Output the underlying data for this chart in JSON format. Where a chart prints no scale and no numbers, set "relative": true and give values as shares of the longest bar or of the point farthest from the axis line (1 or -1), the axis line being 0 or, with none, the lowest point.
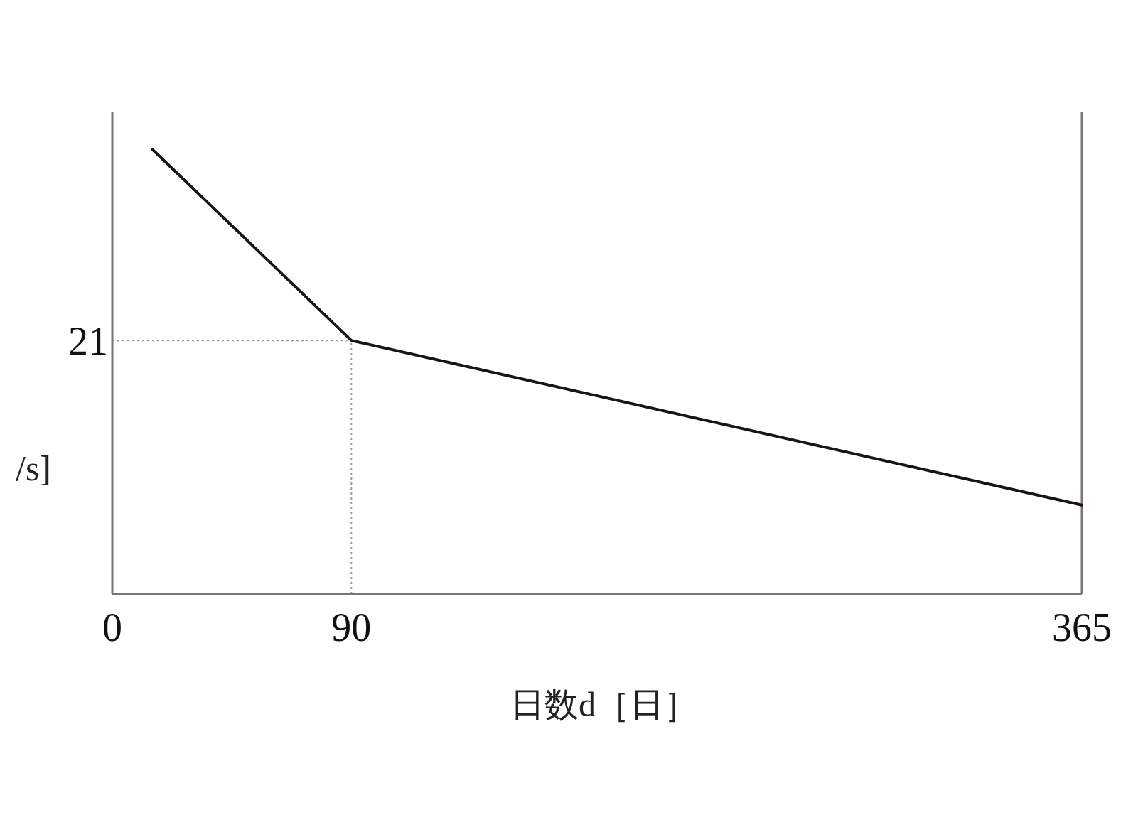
{
  "chart_data": {
    "type": "line",
    "xlabel": "日数d［日］",
    "ylabel": "/s]",
    "relative": true,
    "x": [
      15,
      90,
      365
    ],
    "series": [
      {
        "color": "#1a1414",
        "values": [
          1,
          0.57,
          0.2
        ]
      }
    ],
    "xlim": [
      0,
      365
    ],
    "xticks": [
      0,
      90,
      365
    ],
    "annotations": [
      "21"
    ],
    "ref_lines": [
      {
        "axis": "y",
        "value": 0.57,
        "color": "#9a9a9a",
        "line_style": "dotted"
      },
      {
        "axis": "x",
        "value": 90,
        "color": "#9a9a9a",
        "line_style": "dotted"
      }
    ]
  }
}
